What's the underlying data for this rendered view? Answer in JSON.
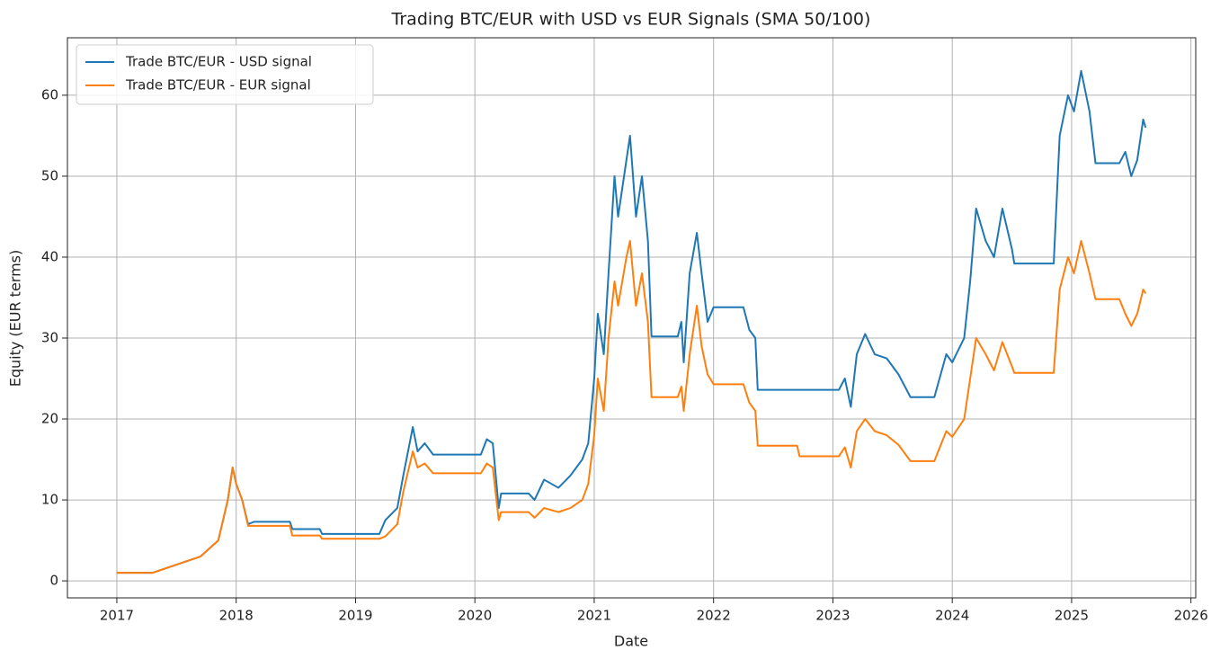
{
  "chart_data": {
    "type": "line",
    "title": "Trading BTC/EUR with USD vs EUR Signals (SMA 50/100)",
    "x_label": "Date",
    "y_label": "Equity (EUR terms)",
    "x": [
      2017.0,
      2017.3,
      2017.5,
      2017.7,
      2017.85,
      2017.93,
      2017.97,
      2018.0,
      2018.05,
      2018.1,
      2018.15,
      2018.45,
      2018.47,
      2018.7,
      2018.72,
      2019.2,
      2019.25,
      2019.35,
      2019.4,
      2019.48,
      2019.52,
      2019.58,
      2019.65,
      2020.05,
      2020.1,
      2020.15,
      2020.2,
      2020.22,
      2020.45,
      2020.5,
      2020.58,
      2020.7,
      2020.8,
      2020.9,
      2020.95,
      2021.0,
      2021.03,
      2021.08,
      2021.12,
      2021.17,
      2021.2,
      2021.27,
      2021.3,
      2021.35,
      2021.4,
      2021.45,
      2021.48,
      2021.7,
      2021.73,
      2021.75,
      2021.8,
      2021.86,
      2021.9,
      2021.95,
      2022.0,
      2022.25,
      2022.3,
      2022.35,
      2022.37,
      2022.7,
      2022.72,
      2023.05,
      2023.1,
      2023.15,
      2023.2,
      2023.27,
      2023.35,
      2023.45,
      2023.55,
      2023.65,
      2023.85,
      2023.95,
      2024.0,
      2024.1,
      2024.15,
      2024.2,
      2024.28,
      2024.35,
      2024.42,
      2024.5,
      2024.52,
      2024.85,
      2024.9,
      2024.97,
      2025.02,
      2025.08,
      2025.15,
      2025.2,
      2025.4,
      2025.45,
      2025.5,
      2025.55,
      2025.6,
      2025.62
    ],
    "series": [
      {
        "name": "Trade BTC/EUR - USD signal",
        "color": "#1f77b4",
        "values": [
          1,
          1,
          2,
          3,
          5,
          10,
          14,
          12,
          10,
          7,
          7.3,
          7.3,
          6.4,
          6.4,
          5.8,
          5.8,
          7.5,
          9,
          13,
          19,
          16,
          17,
          15.6,
          15.6,
          17.5,
          17,
          9,
          10.8,
          10.8,
          10,
          12.5,
          11.5,
          13,
          15,
          17,
          25,
          33,
          28,
          38,
          50,
          45,
          52,
          55,
          45,
          50,
          42,
          30.2,
          30.2,
          32,
          27,
          38,
          43,
          38,
          32,
          33.8,
          33.8,
          31,
          30,
          23.6,
          23.6,
          23.6,
          23.6,
          25,
          21.5,
          28,
          30.5,
          28,
          27.5,
          25.5,
          22.7,
          22.7,
          28,
          27,
          30,
          37,
          46,
          42,
          40,
          46,
          41,
          39.2,
          39.2,
          55,
          60,
          58,
          63,
          58,
          51.6,
          51.6,
          53,
          50,
          52,
          57,
          56
        ]
      },
      {
        "name": "Trade BTC/EUR - EUR signal",
        "color": "#ff7f0e",
        "values": [
          1,
          1,
          2,
          3,
          5,
          10,
          14,
          12,
          10,
          6.8,
          6.8,
          6.8,
          5.6,
          5.6,
          5.2,
          5.2,
          5.5,
          7,
          11,
          16,
          14,
          14.5,
          13.3,
          13.3,
          14.5,
          14,
          7.5,
          8.5,
          8.5,
          7.8,
          9,
          8.5,
          9,
          10,
          12,
          18,
          25,
          21,
          30,
          37,
          34,
          40,
          42,
          34,
          38,
          32,
          22.7,
          22.7,
          24,
          21,
          28,
          34,
          29,
          25.5,
          24.3,
          24.3,
          22,
          21,
          16.7,
          16.7,
          15.4,
          15.4,
          16.5,
          14,
          18.5,
          20,
          18.5,
          18,
          16.8,
          14.8,
          14.8,
          18.5,
          17.8,
          20,
          25,
          30,
          28,
          26,
          29.5,
          26.5,
          25.7,
          25.7,
          36,
          40,
          38,
          42,
          38,
          34.8,
          34.8,
          33,
          31.5,
          33,
          36,
          35.5
        ]
      }
    ],
    "xlim": [
      2016.586,
      2026.04
    ],
    "xticks": [
      2017,
      2018,
      2019,
      2020,
      2021,
      2022,
      2023,
      2024,
      2025,
      2026
    ],
    "ylim": [
      -2.1,
      67.1
    ],
    "yticks": [
      0,
      10,
      20,
      30,
      40,
      50,
      60
    ],
    "grid": true,
    "legend": "upper left"
  }
}
